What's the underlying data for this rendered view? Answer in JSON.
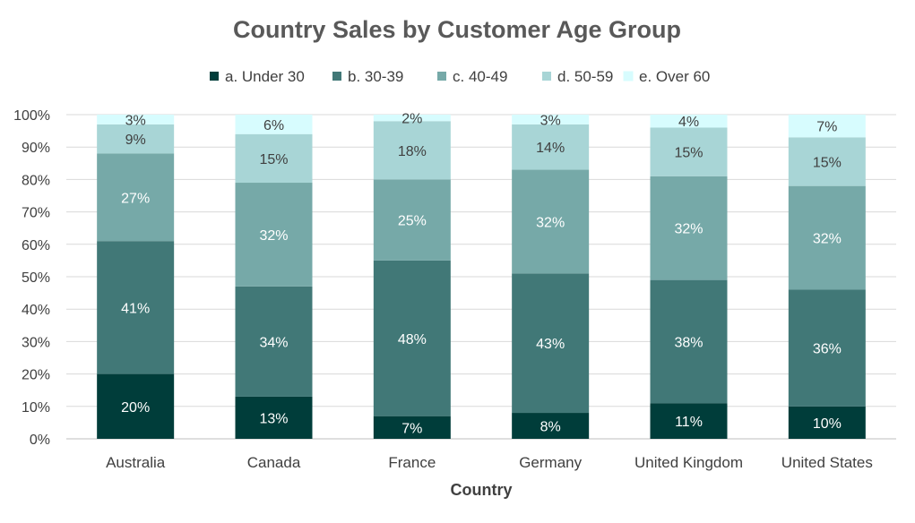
{
  "chart_data": {
    "type": "bar",
    "stacked": true,
    "percent_stacked": true,
    "title": "Country Sales by Customer Age Group",
    "xlabel": "Country",
    "ylabel": "",
    "ylim": [
      0,
      100
    ],
    "y_ticks": [
      "0%",
      "10%",
      "20%",
      "30%",
      "40%",
      "50%",
      "60%",
      "70%",
      "80%",
      "90%",
      "100%"
    ],
    "grid": true,
    "legend_position": "top",
    "categories": [
      "Australia",
      "Canada",
      "France",
      "Germany",
      "United Kingdom",
      "United States"
    ],
    "series": [
      {
        "name": "a. Under 30",
        "color": "#003D3A",
        "label_color": "#ffffff",
        "values": [
          20,
          13,
          7,
          8,
          11,
          10
        ]
      },
      {
        "name": "b. 30-39",
        "color": "#417877",
        "label_color": "#ffffff",
        "values": [
          41,
          34,
          48,
          43,
          38,
          36
        ]
      },
      {
        "name": "c. 40-49",
        "color": "#76A9A8",
        "label_color": "#ffffff",
        "values": [
          27,
          32,
          25,
          32,
          32,
          32
        ]
      },
      {
        "name": "d. 50-59",
        "color": "#A8D5D6",
        "label_color": "#404040",
        "values": [
          9,
          15,
          18,
          14,
          15,
          15
        ]
      },
      {
        "name": "e. Over 60",
        "color": "#D7FCFE",
        "label_color": "#404040",
        "values": [
          3,
          6,
          2,
          3,
          4,
          7
        ]
      }
    ]
  }
}
